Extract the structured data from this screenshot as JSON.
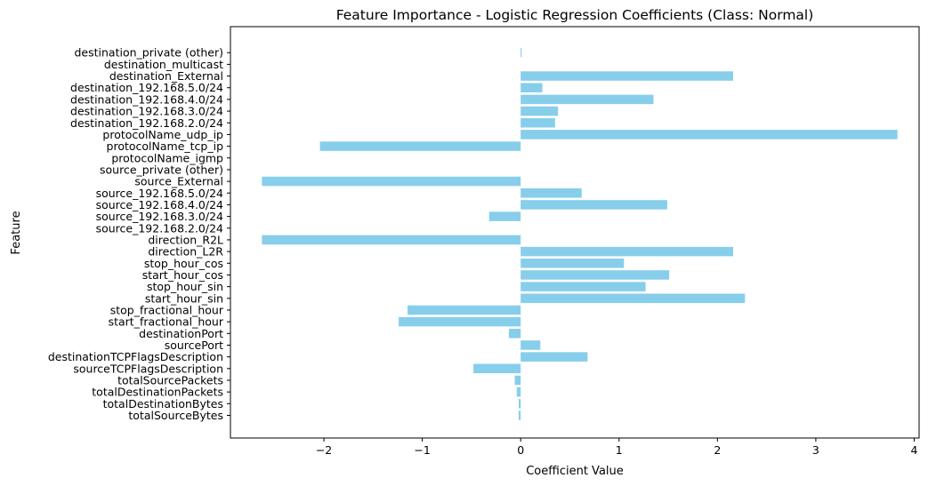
{
  "chart_data": {
    "type": "bar",
    "orientation": "horizontal",
    "title": "Feature Importance - Logistic Regression Coefficients (Class: Normal)",
    "xlabel": "Coefficient Value",
    "ylabel": "Feature",
    "xlim": [
      -2.95,
      4.05
    ],
    "xticks": [
      -2,
      -1,
      0,
      1,
      2,
      3,
      4
    ],
    "xtick_labels": [
      "−2",
      "−1",
      "0",
      "1",
      "2",
      "3",
      "4"
    ],
    "bar_color": "#87ceeb",
    "grid": false,
    "categories": [
      "totalSourceBytes",
      "totalDestinationBytes",
      "totalDestinationPackets",
      "totalSourcePackets",
      "sourceTCPFlagsDescription",
      "destinationTCPFlagsDescription",
      "sourcePort",
      "destinationPort",
      "start_fractional_hour",
      "stop_fractional_hour",
      "start_hour_sin",
      "stop_hour_sin",
      "start_hour_cos",
      "stop_hour_cos",
      "direction_L2R",
      "direction_R2L",
      "source_192.168.2.0/24",
      "source_192.168.3.0/24",
      "source_192.168.4.0/24",
      "source_192.168.5.0/24",
      "source_External",
      "source_private (other)",
      "protocolName_igmp",
      "protocolName_tcp_ip",
      "protocolName_udp_ip",
      "destination_192.168.2.0/24",
      "destination_192.168.3.0/24",
      "destination_192.168.4.0/24",
      "destination_192.168.5.0/24",
      "destination_External",
      "destination_multicast",
      "destination_private (other)"
    ],
    "values": [
      -0.02,
      -0.02,
      -0.04,
      -0.06,
      -0.48,
      0.68,
      0.2,
      -0.12,
      -1.24,
      -1.15,
      2.28,
      1.27,
      1.51,
      1.05,
      2.16,
      -2.63,
      0.0,
      -0.32,
      1.49,
      0.62,
      -2.63,
      0.0,
      0.0,
      -2.04,
      3.83,
      0.35,
      0.38,
      1.35,
      0.22,
      2.16,
      0.0,
      0.01
    ]
  }
}
